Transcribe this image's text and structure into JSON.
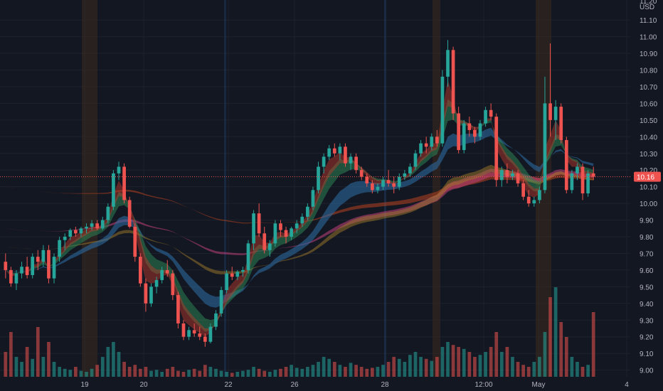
{
  "chart_data": {
    "type": "candlestick",
    "currency_label": "USD",
    "top_tick": "11.20",
    "y_ticks": [
      9.0,
      9.1,
      9.2,
      9.3,
      9.4,
      9.5,
      9.6,
      9.7,
      9.8,
      9.9,
      10.0,
      10.1,
      10.2,
      10.3,
      10.4,
      10.5,
      10.6,
      10.7,
      10.8,
      10.9,
      11.0,
      11.1
    ],
    "ylim": [
      8.96,
      11.22
    ],
    "x_labels": [
      "19",
      "20",
      "22",
      "26",
      "28",
      "12:00",
      "May",
      "4"
    ],
    "current_price": 10.16,
    "current_price_label": "10.16",
    "colors": {
      "up": "#26a69a",
      "down": "#ef5350",
      "background": "#131722",
      "grid": "#1e222d",
      "session_band": "#3a2a1e"
    },
    "candles": [
      [
        9.65,
        9.7,
        9.55,
        9.6
      ],
      [
        9.6,
        9.62,
        9.5,
        9.52
      ],
      [
        9.52,
        9.6,
        9.48,
        9.58
      ],
      [
        9.58,
        9.65,
        9.55,
        9.62
      ],
      [
        9.62,
        9.68,
        9.55,
        9.57
      ],
      [
        9.57,
        9.7,
        9.55,
        9.68
      ],
      [
        9.68,
        9.72,
        9.6,
        9.65
      ],
      [
        9.65,
        9.75,
        9.62,
        9.72
      ],
      [
        9.72,
        9.75,
        9.52,
        9.55
      ],
      [
        9.55,
        9.7,
        9.52,
        9.68
      ],
      [
        9.68,
        9.8,
        9.65,
        9.78
      ],
      [
        9.78,
        9.82,
        9.72,
        9.8
      ],
      [
        9.8,
        9.85,
        9.78,
        9.84
      ],
      [
        9.84,
        9.86,
        9.8,
        9.82
      ],
      [
        9.82,
        9.86,
        9.8,
        9.85
      ],
      [
        9.85,
        9.88,
        9.82,
        9.86
      ],
      [
        9.86,
        9.9,
        9.84,
        9.88
      ],
      [
        9.88,
        9.9,
        9.84,
        9.85
      ],
      [
        9.85,
        9.92,
        9.84,
        9.9
      ],
      [
        9.9,
        10.0,
        9.88,
        9.98
      ],
      [
        9.98,
        10.2,
        9.96,
        10.18
      ],
      [
        10.18,
        10.25,
        10.14,
        10.22
      ],
      [
        10.22,
        10.24,
        10.0,
        10.02
      ],
      [
        10.02,
        10.04,
        9.85,
        9.86
      ],
      [
        9.86,
        9.88,
        9.65,
        9.68
      ],
      [
        9.68,
        9.7,
        9.5,
        9.52
      ],
      [
        9.52,
        9.55,
        9.35,
        9.4
      ],
      [
        9.4,
        9.52,
        9.38,
        9.5
      ],
      [
        9.5,
        9.56,
        9.46,
        9.54
      ],
      [
        9.54,
        9.62,
        9.52,
        9.6
      ],
      [
        9.6,
        9.66,
        9.56,
        9.58
      ],
      [
        9.58,
        9.6,
        9.42,
        9.45
      ],
      [
        9.45,
        9.47,
        9.25,
        9.28
      ],
      [
        9.28,
        9.3,
        9.18,
        9.2
      ],
      [
        9.2,
        9.26,
        9.18,
        9.24
      ],
      [
        9.24,
        9.28,
        9.2,
        9.22
      ],
      [
        9.22,
        9.26,
        9.18,
        9.2
      ],
      [
        9.2,
        9.22,
        9.14,
        9.17
      ],
      [
        9.17,
        9.28,
        9.16,
        9.26
      ],
      [
        9.26,
        9.36,
        9.24,
        9.34
      ],
      [
        9.34,
        9.5,
        9.32,
        9.48
      ],
      [
        9.48,
        9.6,
        9.46,
        9.58
      ],
      [
        9.58,
        9.62,
        9.54,
        9.56
      ],
      [
        9.56,
        9.6,
        9.54,
        9.59
      ],
      [
        9.59,
        9.62,
        9.56,
        9.6
      ],
      [
        9.6,
        9.78,
        9.58,
        9.76
      ],
      [
        9.76,
        9.96,
        9.72,
        9.94
      ],
      [
        9.94,
        10.0,
        9.8,
        9.82
      ],
      [
        9.82,
        9.86,
        9.7,
        9.72
      ],
      [
        9.72,
        9.78,
        9.68,
        9.76
      ],
      [
        9.76,
        9.9,
        9.74,
        9.88
      ],
      [
        9.88,
        9.9,
        9.8,
        9.84
      ],
      [
        9.84,
        9.86,
        9.76,
        9.8
      ],
      [
        9.8,
        9.86,
        9.78,
        9.85
      ],
      [
        9.85,
        9.9,
        9.82,
        9.88
      ],
      [
        9.88,
        9.94,
        9.86,
        9.92
      ],
      [
        9.92,
        10.0,
        9.9,
        9.98
      ],
      [
        9.98,
        10.1,
        9.96,
        10.08
      ],
      [
        10.08,
        10.25,
        10.06,
        10.22
      ],
      [
        10.22,
        10.3,
        10.18,
        10.28
      ],
      [
        10.28,
        10.35,
        10.26,
        10.33
      ],
      [
        10.33,
        10.36,
        10.28,
        10.3
      ],
      [
        10.3,
        10.36,
        10.26,
        10.34
      ],
      [
        10.34,
        10.36,
        10.22,
        10.24
      ],
      [
        10.24,
        10.3,
        10.2,
        10.28
      ],
      [
        10.28,
        10.3,
        10.18,
        10.2
      ],
      [
        10.2,
        10.22,
        10.14,
        10.16
      ],
      [
        10.16,
        10.18,
        10.1,
        10.12
      ],
      [
        10.12,
        10.14,
        10.06,
        10.08
      ],
      [
        10.08,
        10.12,
        10.06,
        10.1
      ],
      [
        10.1,
        10.16,
        10.08,
        10.14
      ],
      [
        10.14,
        10.2,
        10.1,
        10.12
      ],
      [
        10.12,
        10.16,
        10.06,
        10.1
      ],
      [
        10.1,
        10.18,
        10.08,
        10.16
      ],
      [
        10.16,
        10.2,
        10.14,
        10.18
      ],
      [
        10.18,
        10.24,
        10.16,
        10.22
      ],
      [
        10.22,
        10.32,
        10.2,
        10.3
      ],
      [
        10.3,
        10.38,
        10.28,
        10.36
      ],
      [
        10.36,
        10.4,
        10.3,
        10.34
      ],
      [
        10.34,
        10.42,
        10.32,
        10.4
      ],
      [
        10.4,
        10.44,
        10.34,
        10.36
      ],
      [
        10.36,
        10.8,
        10.34,
        10.76
      ],
      [
        10.76,
        10.98,
        10.7,
        10.92
      ],
      [
        10.92,
        10.94,
        10.5,
        10.54
      ],
      [
        10.54,
        10.58,
        10.3,
        10.32
      ],
      [
        10.32,
        10.5,
        10.3,
        10.48
      ],
      [
        10.48,
        10.52,
        10.4,
        10.44
      ],
      [
        10.44,
        10.46,
        10.36,
        10.4
      ],
      [
        10.4,
        10.5,
        10.38,
        10.48
      ],
      [
        10.48,
        10.58,
        10.46,
        10.56
      ],
      [
        10.56,
        10.6,
        10.5,
        10.52
      ],
      [
        10.52,
        10.54,
        10.1,
        10.14
      ],
      [
        10.14,
        10.22,
        10.1,
        10.2
      ],
      [
        10.2,
        10.24,
        10.12,
        10.16
      ],
      [
        10.16,
        10.2,
        10.14,
        10.18
      ],
      [
        10.18,
        10.2,
        10.1,
        10.12
      ],
      [
        10.12,
        10.14,
        10.02,
        10.04
      ],
      [
        10.04,
        10.08,
        9.98,
        10.0
      ],
      [
        10.0,
        10.04,
        9.98,
        10.02
      ],
      [
        10.02,
        10.1,
        10.0,
        10.08
      ],
      [
        10.08,
        10.76,
        10.06,
        10.6
      ],
      [
        10.6,
        10.96,
        10.4,
        10.5
      ],
      [
        10.5,
        10.62,
        10.38,
        10.58
      ],
      [
        10.58,
        10.6,
        10.36,
        10.38
      ],
      [
        10.38,
        10.4,
        10.06,
        10.08
      ],
      [
        10.08,
        10.2,
        10.06,
        10.18
      ],
      [
        10.18,
        10.24,
        10.14,
        10.22
      ],
      [
        10.22,
        10.24,
        10.02,
        10.06
      ],
      [
        10.06,
        10.2,
        10.04,
        10.18
      ],
      [
        10.18,
        10.22,
        10.14,
        10.16
      ]
    ],
    "volumes": [
      0.25,
      0.45,
      0.2,
      0.15,
      0.3,
      0.18,
      0.5,
      0.2,
      0.35,
      0.15,
      0.1,
      0.08,
      0.07,
      0.1,
      0.06,
      0.05,
      0.08,
      0.12,
      0.2,
      0.3,
      0.35,
      0.25,
      0.15,
      0.1,
      0.12,
      0.08,
      0.1,
      0.06,
      0.07,
      0.05,
      0.08,
      0.1,
      0.06,
      0.05,
      0.07,
      0.08,
      0.06,
      0.12,
      0.1,
      0.08,
      0.06,
      0.05,
      0.04,
      0.05,
      0.06,
      0.07,
      0.1,
      0.08,
      0.06,
      0.05,
      0.07,
      0.08,
      0.1,
      0.12,
      0.09,
      0.08,
      0.1,
      0.12,
      0.15,
      0.2,
      0.18,
      0.15,
      0.12,
      0.1,
      0.14,
      0.12,
      0.1,
      0.08,
      0.09,
      0.1,
      0.12,
      0.15,
      0.2,
      0.18,
      0.15,
      0.22,
      0.25,
      0.2,
      0.18,
      0.16,
      0.2,
      0.3,
      0.35,
      0.32,
      0.3,
      0.28,
      0.25,
      0.2,
      0.22,
      0.25,
      0.3,
      0.45,
      0.25,
      0.3,
      0.2,
      0.15,
      0.12,
      0.1,
      0.15,
      0.2,
      0.45,
      0.8,
      0.9,
      0.55,
      0.4,
      0.2,
      0.15,
      0.1,
      0.12,
      0.65
    ]
  }
}
